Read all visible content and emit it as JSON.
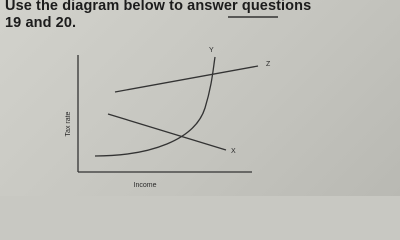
{
  "instruction": {
    "line1": "Use the diagram below to answer questions",
    "line2": "19 and 20."
  },
  "diagram": {
    "y_axis_label": "Tax rate",
    "x_axis_label": "Income",
    "curves": [
      {
        "label": "Z"
      },
      {
        "label": "Y"
      },
      {
        "label": "X"
      }
    ]
  }
}
